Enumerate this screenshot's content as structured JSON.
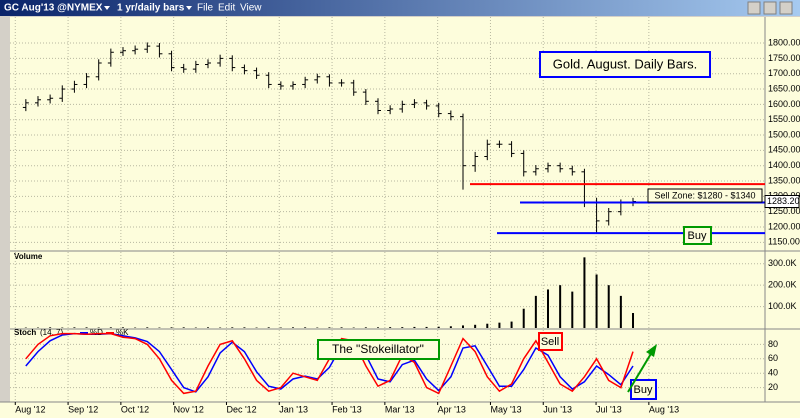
{
  "header": {
    "symbol": "GC Aug'13 @NYMEX",
    "period": "1 yr/daily bars",
    "menu": [
      "File",
      "Edit",
      "View"
    ]
  },
  "chart_data": [
    {
      "type": "ohlc",
      "color": "#000000",
      "grid": true,
      "x": [
        0.2,
        0.43,
        0.66,
        0.89,
        1.12,
        1.35,
        1.58,
        1.81,
        2.04,
        2.27,
        2.5,
        2.73,
        2.96,
        3.19,
        3.42,
        3.65,
        3.88,
        4.11,
        4.34,
        4.57,
        4.8,
        5.03,
        5.26,
        5.49,
        5.72,
        5.95,
        6.18,
        6.41,
        6.64,
        6.87,
        7.1,
        7.33,
        7.56,
        7.79,
        8.02,
        8.25,
        8.48,
        8.71,
        8.94,
        9.17,
        9.4,
        9.63,
        9.86,
        10.09,
        10.32,
        10.55,
        10.78,
        11.01,
        11.24,
        11.47,
        11.7
      ],
      "xlim": [
        -0.1,
        14.2
      ],
      "open": [
        1590,
        1605,
        1615,
        1620,
        1650,
        1665,
        1690,
        1735,
        1770,
        1775,
        1780,
        1790,
        1765,
        1720,
        1715,
        1730,
        1735,
        1750,
        1720,
        1710,
        1695,
        1665,
        1660,
        1665,
        1680,
        1690,
        1670,
        1670,
        1640,
        1610,
        1580,
        1585,
        1600,
        1605,
        1595,
        1570,
        1560,
        1400,
        1430,
        1470,
        1470,
        1440,
        1380,
        1390,
        1400,
        1390,
        1380,
        1280,
        1220,
        1250,
        1280
      ],
      "high": [
        1617,
        1627,
        1632,
        1662,
        1677,
        1702,
        1747,
        1782,
        1787,
        1792,
        1802,
        1800,
        1775,
        1732,
        1742,
        1747,
        1762,
        1760,
        1730,
        1720,
        1705,
        1675,
        1675,
        1690,
        1700,
        1698,
        1682,
        1680,
        1650,
        1620,
        1597,
        1612,
        1617,
        1615,
        1605,
        1580,
        1570,
        1445,
        1485,
        1482,
        1480,
        1450,
        1402,
        1410,
        1410,
        1400,
        1390,
        1295,
        1262,
        1290,
        1295
      ],
      "low": [
        1578,
        1593,
        1603,
        1608,
        1638,
        1653,
        1678,
        1723,
        1758,
        1763,
        1768,
        1753,
        1708,
        1703,
        1703,
        1718,
        1723,
        1708,
        1698,
        1683,
        1653,
        1648,
        1648,
        1653,
        1668,
        1658,
        1658,
        1628,
        1598,
        1568,
        1568,
        1573,
        1588,
        1583,
        1558,
        1548,
        1322,
        1380,
        1418,
        1458,
        1428,
        1365,
        1368,
        1378,
        1378,
        1368,
        1265,
        1180,
        1205,
        1238,
        1268
      ],
      "close": [
        1605,
        1615,
        1620,
        1650,
        1665,
        1690,
        1735,
        1770,
        1775,
        1780,
        1790,
        1765,
        1720,
        1715,
        1730,
        1735,
        1750,
        1720,
        1710,
        1695,
        1665,
        1660,
        1665,
        1680,
        1690,
        1670,
        1670,
        1640,
        1610,
        1580,
        1585,
        1600,
        1605,
        1595,
        1570,
        1560,
        1400,
        1430,
        1470,
        1470,
        1440,
        1380,
        1390,
        1400,
        1390,
        1380,
        1280,
        1220,
        1250,
        1280,
        1283.2
      ],
      "last_label": "1283.20",
      "ylim": [
        1125,
        1885
      ],
      "yticks": [
        {
          "value": 1150,
          "label": "1150.00"
        },
        {
          "value": 1200,
          "label": "1200.00"
        },
        {
          "value": 1250,
          "label": "1250.00"
        },
        {
          "value": 1300,
          "label": "1300.00"
        },
        {
          "value": 1350,
          "label": "1350.00"
        },
        {
          "value": 1400,
          "label": "1400.00"
        },
        {
          "value": 1450,
          "label": "1450.00"
        },
        {
          "value": 1500,
          "label": "1500.00"
        },
        {
          "value": 1550,
          "label": "1550.00"
        },
        {
          "value": 1600,
          "label": "1600.00"
        },
        {
          "value": 1650,
          "label": "1650.00"
        },
        {
          "value": 1700,
          "label": "1700.00"
        },
        {
          "value": 1750,
          "label": "1750.00"
        },
        {
          "value": 1800,
          "label": "1800.00"
        }
      ],
      "levels": [
        {
          "value": 1340,
          "color": "#ff0000"
        },
        {
          "value": 1280,
          "color": "#0000ff"
        },
        {
          "value": 1180,
          "color": "#0000ff"
        }
      ],
      "annotations": [
        "Gold. August. Daily Bars.",
        "Sell Zone: $1280 - $1340",
        "Buy"
      ]
    },
    {
      "type": "bar",
      "title": "Volume",
      "color": "#000000",
      "grid": true,
      "values": [
        2000,
        2000,
        3000,
        2000,
        3000,
        3000,
        2000,
        3000,
        3000,
        2000,
        3000,
        2000,
        3000,
        3000,
        2000,
        3000,
        2000,
        3000,
        3000,
        2000,
        3000,
        2000,
        3000,
        3000,
        2000,
        3000,
        3000,
        2000,
        3000,
        3000,
        4000,
        4000,
        5000,
        5000,
        6000,
        8000,
        12000,
        15000,
        20000,
        25000,
        30000,
        90000,
        150000,
        180000,
        200000,
        170000,
        330000,
        250000,
        200000,
        150000,
        70000
      ],
      "ylim": [
        0,
        355000
      ],
      "yticks": [
        {
          "value": 100000,
          "label": "100.0K"
        },
        {
          "value": 200000,
          "label": "200.0K"
        },
        {
          "value": 300000,
          "label": "300.0K"
        }
      ]
    },
    {
      "type": "line",
      "title": "Stoch",
      "params": "(14, 7)",
      "grid": true,
      "series": [
        {
          "name": "%D",
          "color": "#0000ff",
          "values": [
            50,
            70,
            85,
            93,
            95,
            94,
            94,
            95,
            92,
            89,
            84,
            70,
            45,
            20,
            14,
            35,
            68,
            83,
            70,
            42,
            22,
            18,
            32,
            36,
            32,
            48,
            78,
            85,
            65,
            32,
            28,
            52,
            58,
            32,
            16,
            35,
            75,
            78,
            50,
            22,
            22,
            45,
            75,
            65,
            35,
            18,
            28,
            50,
            38,
            24,
            50
          ]
        },
        {
          "name": "%K",
          "color": "#ff0000",
          "values": [
            60,
            80,
            92,
            95,
            95,
            94,
            95,
            95,
            90,
            88,
            80,
            60,
            30,
            12,
            15,
            50,
            80,
            85,
            60,
            30,
            15,
            20,
            40,
            35,
            30,
            60,
            88,
            85,
            50,
            22,
            30,
            65,
            55,
            20,
            12,
            50,
            88,
            70,
            35,
            15,
            25,
            60,
            85,
            55,
            25,
            15,
            35,
            60,
            30,
            20,
            70
          ]
        }
      ],
      "ylim": [
        0,
        100
      ],
      "yticks": [
        20,
        40,
        60,
        80
      ],
      "xticks": [
        {
          "value": 0,
          "label": "Aug '12"
        },
        {
          "value": 1,
          "label": "Sep '12"
        },
        {
          "value": 2,
          "label": "Oct '12"
        },
        {
          "value": 3,
          "label": "Nov '12"
        },
        {
          "value": 4,
          "label": "Dec '12"
        },
        {
          "value": 5,
          "label": "Jan '13"
        },
        {
          "value": 6,
          "label": "Feb '13"
        },
        {
          "value": 7,
          "label": "Mar '13"
        },
        {
          "value": 8,
          "label": "Apr '13"
        },
        {
          "value": 9,
          "label": "May '13"
        },
        {
          "value": 10,
          "label": "Jun '13"
        },
        {
          "value": 11,
          "label": "Jul '13"
        },
        {
          "value": 12,
          "label": "Aug '13"
        }
      ],
      "annotations": [
        "The \"Stokeillator\"",
        "Sell",
        "Buy"
      ]
    }
  ]
}
